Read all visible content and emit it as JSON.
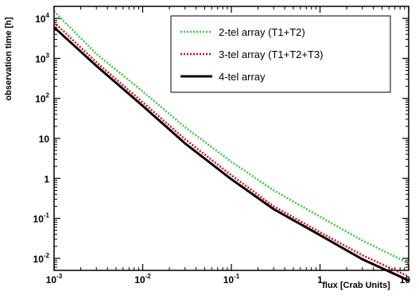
{
  "chart_data": {
    "type": "line",
    "title": "",
    "xlabel": "flux [Crab Units]",
    "ylabel": "observation time [h]",
    "xscale": "log",
    "yscale": "log",
    "xlim": [
      0.001,
      10
    ],
    "ylim": [
      0.005,
      20000
    ],
    "grid": false,
    "legend_position": "top-right",
    "x_ticks": [
      {
        "value": 0.001,
        "base": "10",
        "exp": "-3"
      },
      {
        "value": 0.01,
        "base": "10",
        "exp": "-2"
      },
      {
        "value": 0.1,
        "base": "10",
        "exp": "-1"
      },
      {
        "value": 1,
        "base": "1",
        "exp": ""
      },
      {
        "value": 10,
        "base": "10",
        "exp": ""
      }
    ],
    "y_ticks": [
      {
        "value": 0.01,
        "base": "10",
        "exp": "-2"
      },
      {
        "value": 0.1,
        "base": "10",
        "exp": "-1"
      },
      {
        "value": 1,
        "base": "1",
        "exp": ""
      },
      {
        "value": 10,
        "base": "10",
        "exp": ""
      },
      {
        "value": 100,
        "base": "10",
        "exp": "2"
      },
      {
        "value": 1000,
        "base": "10",
        "exp": "3"
      },
      {
        "value": 10000,
        "base": "10",
        "exp": "4"
      }
    ],
    "series": [
      {
        "name": "2-tel array (T1+T2)",
        "color": "#33cc33",
        "style": "dotted",
        "x": [
          0.001,
          0.003,
          0.01,
          0.03,
          0.1,
          0.3,
          1,
          3,
          10
        ],
        "y": [
          15000,
          1300,
          150,
          19,
          2.6,
          0.5,
          0.11,
          0.028,
          0.0075
        ]
      },
      {
        "name": "3-tel array (T1+T2+T3)",
        "color": "#ee0000",
        "style": "dotted",
        "x": [
          0.001,
          0.003,
          0.01,
          0.03,
          0.1,
          0.3,
          1,
          3,
          10
        ],
        "y": [
          8000,
          800,
          80,
          9.5,
          1.2,
          0.2,
          0.045,
          0.012,
          0.0035
        ]
      },
      {
        "name": "4-tel array",
        "color": "#000000",
        "style": "solid",
        "x": [
          0.001,
          0.003,
          0.01,
          0.03,
          0.1,
          0.3,
          1,
          3,
          10
        ],
        "y": [
          6000,
          650,
          65,
          7.5,
          0.95,
          0.17,
          0.038,
          0.0095,
          0.0028
        ]
      }
    ]
  }
}
